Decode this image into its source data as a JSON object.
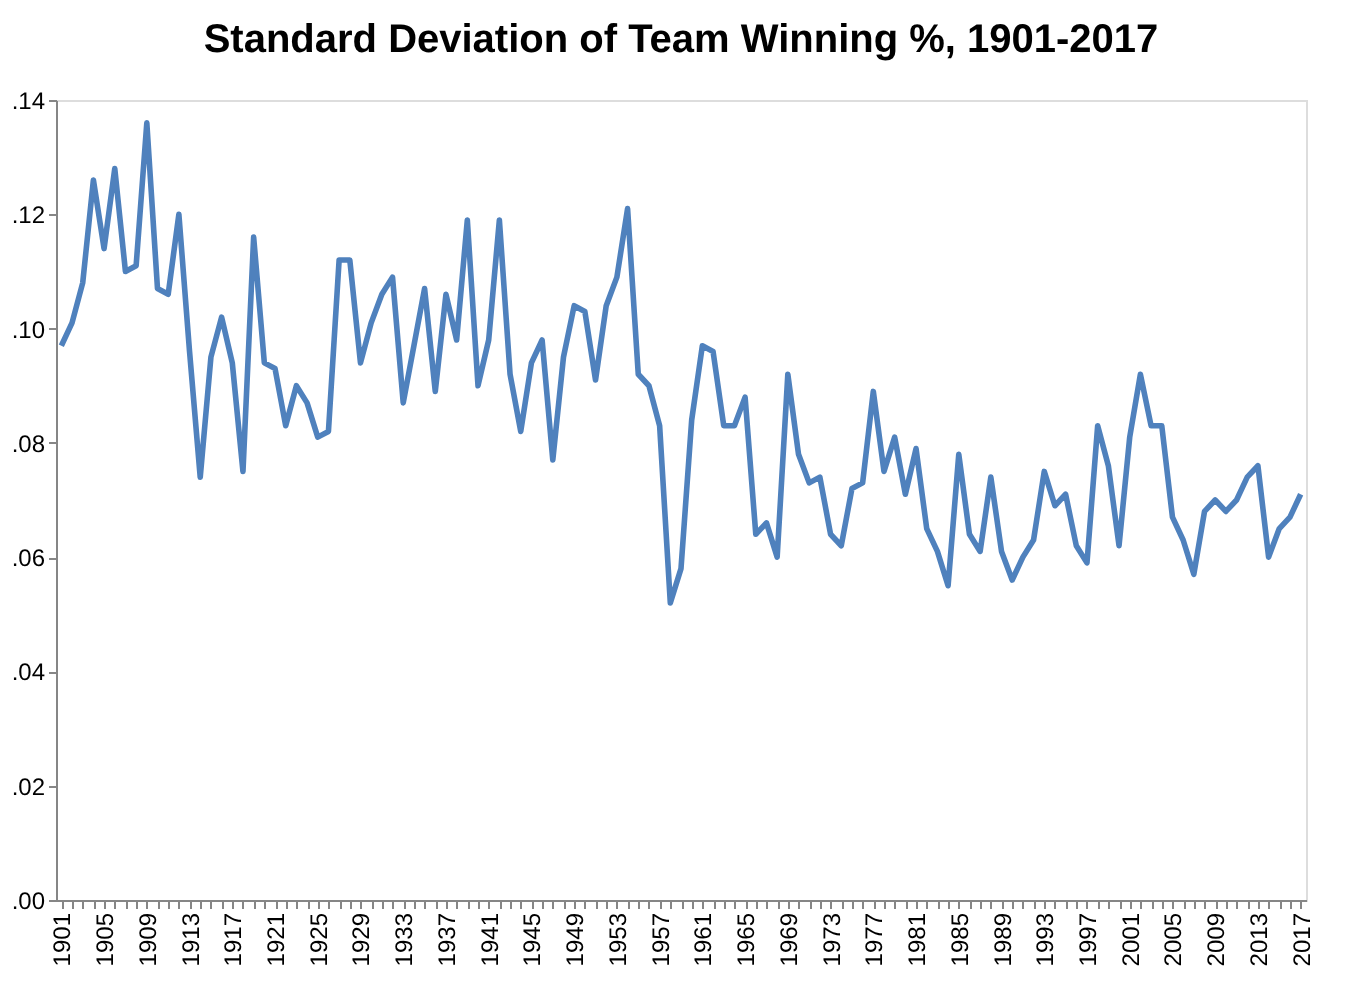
{
  "chart_data": {
    "type": "line",
    "title": "Standard Deviation of Team Winning %, 1901-2017",
    "categories": [
      "1901",
      null,
      null,
      null,
      "1905",
      null,
      null,
      null,
      "1909",
      null,
      null,
      null,
      "1913",
      null,
      null,
      null,
      "1917",
      null,
      null,
      null,
      "1921",
      null,
      null,
      null,
      "1925",
      null,
      null,
      null,
      "1929",
      null,
      null,
      null,
      "1933",
      null,
      null,
      null,
      "1937",
      null,
      null,
      null,
      "1941",
      null,
      null,
      null,
      "1945",
      null,
      null,
      null,
      "1949",
      null,
      null,
      null,
      "1953",
      null,
      null,
      null,
      "1957",
      null,
      null,
      null,
      "1961",
      null,
      null,
      null,
      "1965",
      null,
      null,
      null,
      "1969",
      null,
      null,
      null,
      "1973",
      null,
      null,
      null,
      "1977",
      null,
      null,
      null,
      "1981",
      null,
      null,
      null,
      "1985",
      null,
      null,
      null,
      "1989",
      null,
      null,
      null,
      "1993",
      null,
      null,
      null,
      "1997",
      null,
      null,
      null,
      "2001",
      null,
      null,
      null,
      "2005",
      null,
      null,
      null,
      "2009",
      null,
      null,
      null,
      "2013",
      null,
      null,
      null,
      "2017"
    ],
    "series": [
      {
        "color": "#4f81bd",
        "values": [
          0.097,
          0.101,
          0.108,
          0.126,
          0.114,
          0.128,
          0.11,
          0.111,
          0.136,
          0.107,
          0.106,
          0.12,
          0.096,
          0.074,
          0.095,
          0.102,
          0.094,
          0.075,
          0.116,
          0.094,
          0.093,
          0.083,
          0.09,
          0.087,
          0.081,
          0.082,
          0.112,
          0.112,
          0.094,
          0.101,
          0.106,
          0.109,
          0.087,
          0.097,
          0.107,
          0.089,
          0.106,
          0.098,
          0.119,
          0.09,
          0.098,
          0.119,
          0.092,
          0.082,
          0.094,
          0.098,
          0.077,
          0.095,
          0.104,
          0.103,
          0.091,
          0.104,
          0.109,
          0.121,
          0.092,
          0.09,
          0.083,
          0.052,
          0.058,
          0.084,
          0.097,
          0.096,
          0.083,
          0.083,
          0.088,
          0.064,
          0.066,
          0.06,
          0.092,
          0.078,
          0.073,
          0.074,
          0.064,
          0.062,
          0.072,
          0.073,
          0.089,
          0.075,
          0.081,
          0.071,
          0.079,
          0.065,
          0.061,
          0.055,
          0.078,
          0.064,
          0.061,
          0.074,
          0.061,
          0.056,
          0.06,
          0.063,
          0.075,
          0.069,
          0.071,
          0.062,
          0.059,
          0.083,
          0.076,
          0.062,
          0.081,
          0.092,
          0.083,
          0.083,
          0.067,
          0.063,
          0.057,
          0.068,
          0.07,
          0.068,
          0.07,
          0.074,
          0.076,
          0.06,
          0.065,
          0.067,
          0.071
        ]
      }
    ],
    "ylim": [
      0,
      0.14
    ],
    "yticks": [
      {
        "value": 0,
        "label": ".00"
      },
      {
        "value": 0.02,
        "label": ".02"
      },
      {
        "value": 0.04,
        "label": ".04"
      },
      {
        "value": 0.06,
        "label": ".06"
      },
      {
        "value": 0.08,
        "label": ".08"
      },
      {
        "value": 0.1,
        "label": ".10"
      },
      {
        "value": 0.12,
        "label": ".12"
      },
      {
        "value": 0.14,
        "label": ".14"
      }
    ],
    "grid": false,
    "legend": false,
    "marker": "none",
    "line_style": "solid"
  }
}
